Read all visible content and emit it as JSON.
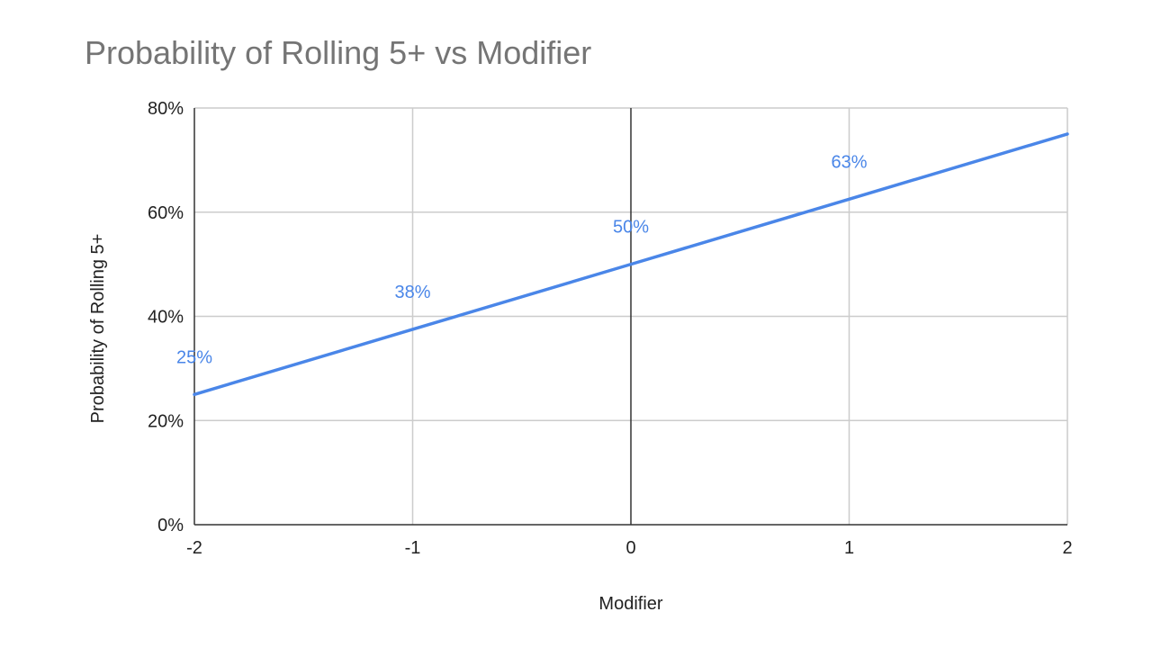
{
  "chart_data": {
    "type": "line",
    "title": "Probability of Rolling 5+ vs Modifier",
    "xlabel": "Modifier",
    "ylabel": "Probability of Rolling 5+",
    "x": [
      -2,
      -1,
      0,
      1,
      2
    ],
    "x_ticks": [
      "-2",
      "-1",
      "0",
      "1",
      "2"
    ],
    "xlim": [
      -2,
      2
    ],
    "ylim": [
      0,
      0.8
    ],
    "y_ticks": [
      0,
      0.2,
      0.4,
      0.6,
      0.8
    ],
    "y_tick_labels": [
      "0%",
      "20%",
      "40%",
      "60%",
      "80%"
    ],
    "grid": true,
    "legend": "none",
    "series": [
      {
        "values": [
          0.25,
          0.375,
          0.5,
          0.625,
          0.75
        ],
        "color": "#4a86e8"
      }
    ],
    "data_labels": [
      {
        "x": -2,
        "text": "25%"
      },
      {
        "x": -1,
        "text": "38%"
      },
      {
        "x": 0,
        "text": "50%"
      },
      {
        "x": 1,
        "text": "63%"
      }
    ],
    "colors": {
      "line": "#4a86e8",
      "grid": "#cccccc",
      "zero_line": "#333333",
      "title": "#757575",
      "text": "#222222"
    }
  }
}
